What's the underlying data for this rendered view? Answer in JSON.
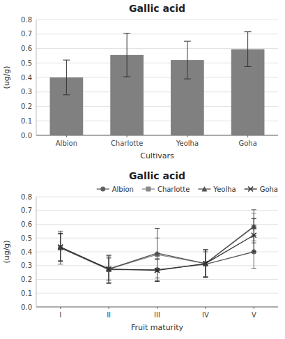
{
  "chart_data": [
    {
      "type": "bar",
      "title": "Gallic acid",
      "categories": [
        "Albion",
        "Charlotte",
        "Yeolha",
        "Goha"
      ],
      "values": [
        0.4,
        0.555,
        0.52,
        0.595
      ],
      "errors": [
        0.12,
        0.15,
        0.13,
        0.12
      ],
      "color": "#808080",
      "x_label": "Cultivars",
      "y_label": "(ug/g)",
      "ylim": [
        0,
        0.8
      ],
      "yticks": [
        {
          "value": 0,
          "label": "0.0"
        },
        0.1,
        0.2,
        0.3,
        0.4,
        0.5,
        0.6,
        0.7,
        0.8
      ],
      "grid": true
    },
    {
      "type": "line",
      "title": "Gallic acid",
      "categories": [
        "I",
        "II",
        "III",
        "IV",
        "V"
      ],
      "series": [
        {
          "name": "Albion",
          "color": "#606060",
          "marker": "circle",
          "values": [
            0.43,
            0.27,
            0.27,
            0.31,
            0.4
          ],
          "errors": [
            0.12,
            0.1,
            0.08,
            0.09,
            0.12
          ]
        },
        {
          "name": "Charlotte",
          "color": "#888888",
          "marker": "square",
          "values": [
            0.43,
            0.275,
            0.38,
            0.315,
            0.58
          ],
          "errors": [
            0.1,
            0.1,
            0.12,
            0.1,
            0.1
          ]
        },
        {
          "name": "Yeolha",
          "color": "#505050",
          "marker": "triangle",
          "values": [
            0.43,
            0.275,
            0.39,
            0.315,
            0.585
          ],
          "errors": [
            0.1,
            0.1,
            0.18,
            0.1,
            0.12
          ]
        },
        {
          "name": "Goha",
          "color": "#303030",
          "marker": "x",
          "values": [
            0.435,
            0.275,
            0.265,
            0.315,
            0.52
          ],
          "errors": [
            0.1,
            0.08,
            0.08,
            0.1,
            0.12
          ]
        }
      ],
      "x_label": "Fruit maturity",
      "y_label": "(ug/g)",
      "ylim": [
        0,
        0.8
      ],
      "yticks": [
        {
          "value": 0,
          "label": "0.0"
        },
        0.1,
        0.2,
        0.3,
        0.4,
        0.5,
        0.6,
        0.7,
        0.8
      ],
      "grid": true,
      "legend": "upper right"
    }
  ]
}
